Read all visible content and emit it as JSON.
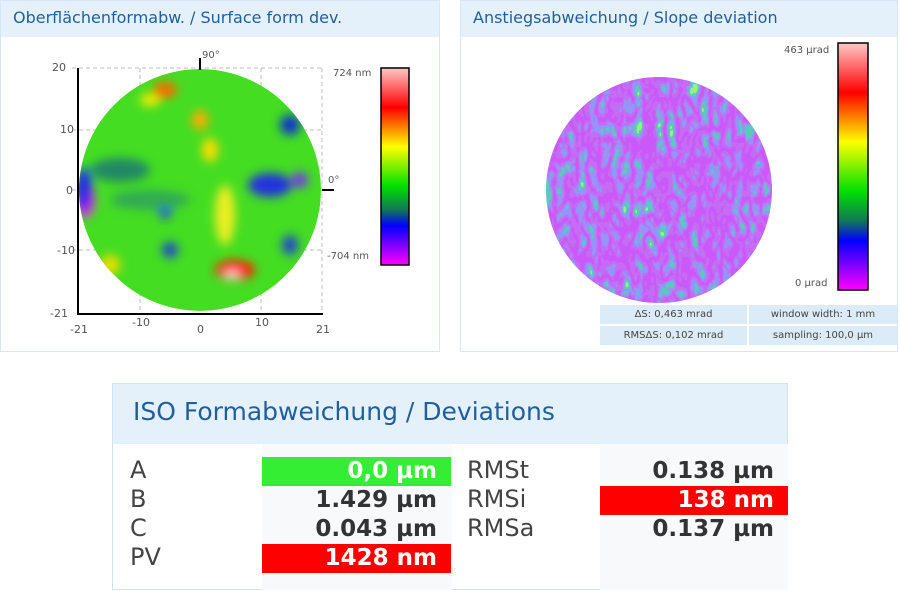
{
  "left_panel": {
    "title": "Oberflächenformabw. / Surface form dev."
  },
  "right_panel": {
    "title": "Anstiegsabweichung / Slope deviation"
  },
  "chart_data": [
    {
      "type": "heatmap",
      "title": "Oberflächenformabw. / Surface form dev.",
      "x_ticks": [
        "-21",
        "-10",
        "0",
        "10",
        "21"
      ],
      "y_ticks": [
        "20",
        "10",
        "0",
        "-10",
        "-21"
      ],
      "xlim": [
        -21,
        21
      ],
      "ylim": [
        -21,
        20
      ],
      "angle_labels": [
        "90°",
        "0°"
      ],
      "colorbar": {
        "max": "724 nm",
        "min": "-704 nm"
      }
    },
    {
      "type": "heatmap",
      "title": "Anstiegsabweichung / Slope deviation",
      "colorbar": {
        "max": "463 µrad",
        "min": "0 µrad"
      },
      "info": {
        "delta_s": "ΔS: 0,463 mrad",
        "window_width": "window width: 1 mm",
        "rms_delta_s": "RMSΔS: 0,102 mrad",
        "sampling": "sampling: 100,0 µm"
      }
    }
  ],
  "deviations": {
    "title": "ISO Formabweichung / Deviations",
    "rows_left": [
      {
        "label": "A",
        "value": "0,0 µm",
        "highlight": "#33ee33"
      },
      {
        "label": "B",
        "value": "1.429 µm"
      },
      {
        "label": "C",
        "value": "0.043 µm"
      },
      {
        "label": "PV",
        "value": "1428 nm",
        "highlight": "#ff0000"
      }
    ],
    "rows_right": [
      {
        "label": "RMSt",
        "value": "0.138 µm"
      },
      {
        "label": "RMSi",
        "value": "138 nm",
        "highlight": "#ff0000"
      },
      {
        "label": "RMSa",
        "value": "0.137 µm"
      }
    ]
  }
}
